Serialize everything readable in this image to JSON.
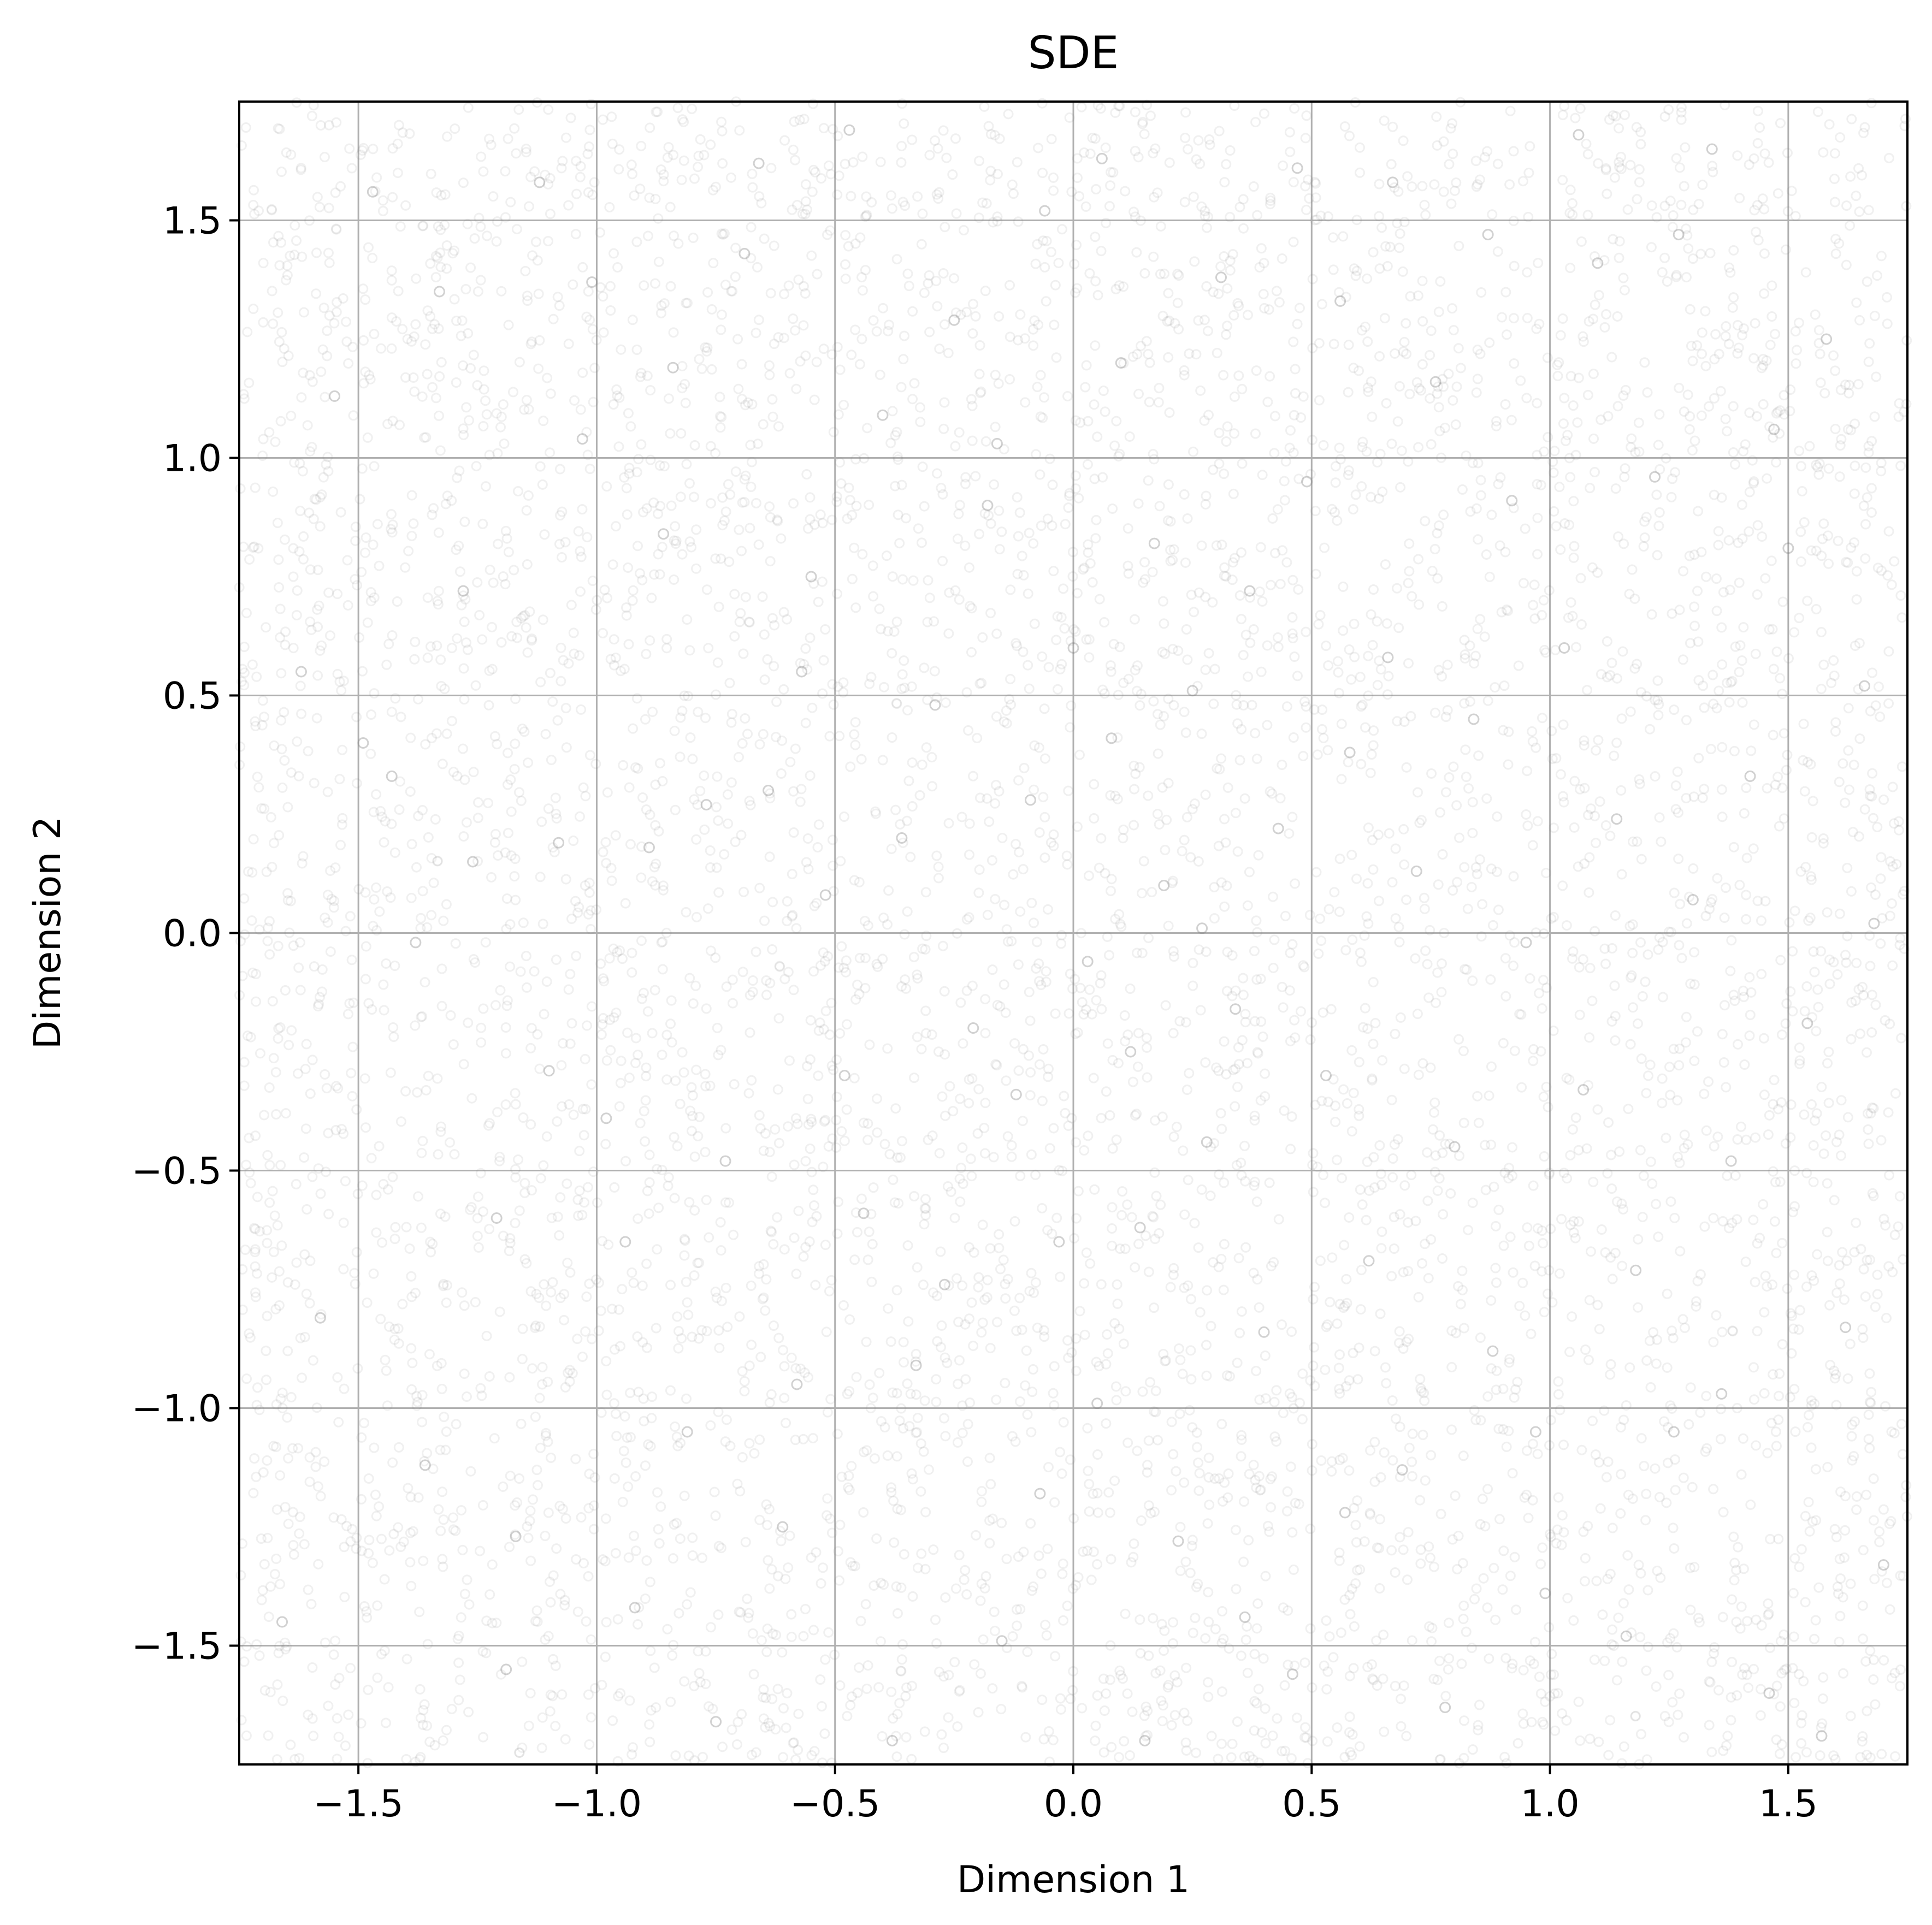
{
  "chart_data": {
    "type": "scatter",
    "title": "SDE",
    "xlabel": "Dimension 1",
    "ylabel": "Dimension 2",
    "xlim": [
      -1.75,
      1.75
    ],
    "ylim": [
      -1.75,
      1.75
    ],
    "xticks": [
      -1.5,
      -1.0,
      -0.5,
      0.0,
      0.5,
      1.0,
      1.5
    ],
    "yticks": [
      -1.5,
      -1.0,
      -0.5,
      0.0,
      0.5,
      1.0,
      1.5
    ],
    "xtick_labels": [
      "−1.5",
      "−1.0",
      "−0.5",
      "0.0",
      "0.5",
      "1.0",
      "1.5"
    ],
    "ytick_labels": [
      "−1.5",
      "−1.0",
      "−0.5",
      "0.0",
      "0.5",
      "1.0",
      "1.5"
    ],
    "grid": true,
    "legend": "none",
    "marker": "hollow-circle",
    "marker_color": "#808080",
    "marker_opacity": 0.12,
    "series": [
      {
        "distribution": "approximately uniform over the full plotted range, slightly denser near the center",
        "points": [
          [
            -1.62,
            0.55
          ],
          [
            -1.55,
            1.13
          ],
          [
            -1.49,
            0.4
          ],
          [
            -1.43,
            0.33
          ],
          [
            -1.38,
            -0.02
          ],
          [
            -1.33,
            1.35
          ],
          [
            -1.26,
            0.15
          ],
          [
            -1.21,
            -0.6
          ],
          [
            -1.17,
            -1.27
          ],
          [
            -1.12,
            1.58
          ],
          [
            -1.08,
            0.19
          ],
          [
            -1.03,
            1.04
          ],
          [
            -0.98,
            -0.39
          ],
          [
            -0.94,
            -0.65
          ],
          [
            -0.89,
            0.18
          ],
          [
            -0.86,
            0.84
          ],
          [
            -0.81,
            -1.05
          ],
          [
            -0.77,
            0.27
          ],
          [
            -0.73,
            -0.48
          ],
          [
            -0.69,
            1.43
          ],
          [
            -0.64,
            0.3
          ],
          [
            -0.61,
            -1.25
          ],
          [
            -0.57,
            0.55
          ],
          [
            -0.55,
            0.75
          ],
          [
            -0.52,
            0.08
          ],
          [
            -0.48,
            -0.3
          ],
          [
            -0.44,
            -0.59
          ],
          [
            -0.4,
            1.09
          ],
          [
            -0.36,
            0.2
          ],
          [
            -0.33,
            -0.91
          ],
          [
            -0.29,
            0.48
          ],
          [
            -0.25,
            1.29
          ],
          [
            -0.21,
            -0.2
          ],
          [
            -0.18,
            0.9
          ],
          [
            -0.15,
            -1.49
          ],
          [
            -0.12,
            -0.34
          ],
          [
            -0.09,
            0.28
          ],
          [
            -0.06,
            1.52
          ],
          [
            -0.03,
            -0.65
          ],
          [
            0.0,
            0.6
          ],
          [
            0.03,
            -0.06
          ],
          [
            0.05,
            -0.99
          ],
          [
            0.08,
            0.41
          ],
          [
            0.1,
            1.2
          ],
          [
            0.12,
            -0.25
          ],
          [
            0.14,
            -0.62
          ],
          [
            0.17,
            0.82
          ],
          [
            0.19,
            0.1
          ],
          [
            0.22,
            -1.28
          ],
          [
            0.25,
            0.51
          ],
          [
            0.28,
            -0.44
          ],
          [
            0.31,
            1.38
          ],
          [
            0.34,
            -0.16
          ],
          [
            0.37,
            0.72
          ],
          [
            0.4,
            -0.84
          ],
          [
            0.43,
            0.22
          ],
          [
            0.46,
            -1.56
          ],
          [
            0.49,
            0.95
          ],
          [
            0.53,
            -0.3
          ],
          [
            0.56,
            1.33
          ],
          [
            0.58,
            0.38
          ],
          [
            0.62,
            -0.69
          ],
          [
            0.66,
            0.58
          ],
          [
            0.69,
            -1.13
          ],
          [
            0.72,
            0.13
          ],
          [
            0.76,
            1.16
          ],
          [
            0.8,
            -0.45
          ],
          [
            0.84,
            0.45
          ],
          [
            0.88,
            -0.88
          ],
          [
            0.92,
            0.91
          ],
          [
            0.95,
            -0.02
          ],
          [
            0.99,
            -1.39
          ],
          [
            1.03,
            0.6
          ],
          [
            1.07,
            -0.33
          ],
          [
            1.1,
            1.41
          ],
          [
            1.14,
            0.24
          ],
          [
            1.18,
            -0.71
          ],
          [
            1.22,
            0.96
          ],
          [
            1.26,
            -1.05
          ],
          [
            1.3,
            0.07
          ],
          [
            1.34,
            1.65
          ],
          [
            1.38,
            -0.48
          ],
          [
            1.42,
            0.33
          ],
          [
            1.46,
            -1.6
          ],
          [
            1.5,
            0.81
          ],
          [
            1.54,
            -0.19
          ],
          [
            1.58,
            1.25
          ],
          [
            1.62,
            -0.83
          ],
          [
            1.66,
            0.52
          ],
          [
            1.7,
            -1.33
          ],
          [
            -1.66,
            -1.45
          ],
          [
            -1.58,
            -0.81
          ],
          [
            -1.47,
            1.56
          ],
          [
            -1.36,
            -1.12
          ],
          [
            -1.28,
            0.72
          ],
          [
            -1.19,
            -1.55
          ],
          [
            -1.1,
            -0.29
          ],
          [
            -1.01,
            1.37
          ],
          [
            -0.92,
            -1.42
          ],
          [
            -0.84,
            1.19
          ],
          [
            -0.75,
            -1.66
          ],
          [
            -0.66,
            1.62
          ],
          [
            -0.58,
            -0.95
          ],
          [
            -0.47,
            1.69
          ],
          [
            -0.38,
            -1.7
          ],
          [
            -0.27,
            -0.74
          ],
          [
            -0.16,
            1.03
          ],
          [
            -0.07,
            -1.18
          ],
          [
            0.06,
            1.63
          ],
          [
            0.15,
            -1.7
          ],
          [
            0.27,
            0.01
          ],
          [
            0.36,
            -1.44
          ],
          [
            0.47,
            1.61
          ],
          [
            0.57,
            -1.22
          ],
          [
            0.67,
            1.58
          ],
          [
            0.78,
            -1.63
          ],
          [
            0.87,
            1.47
          ],
          [
            0.97,
            -1.05
          ],
          [
            1.06,
            1.68
          ],
          [
            1.16,
            -1.48
          ],
          [
            1.27,
            1.47
          ],
          [
            1.36,
            -0.97
          ],
          [
            1.47,
            1.06
          ],
          [
            1.57,
            -1.69
          ],
          [
            1.68,
            0.02
          ]
        ]
      }
    ]
  }
}
